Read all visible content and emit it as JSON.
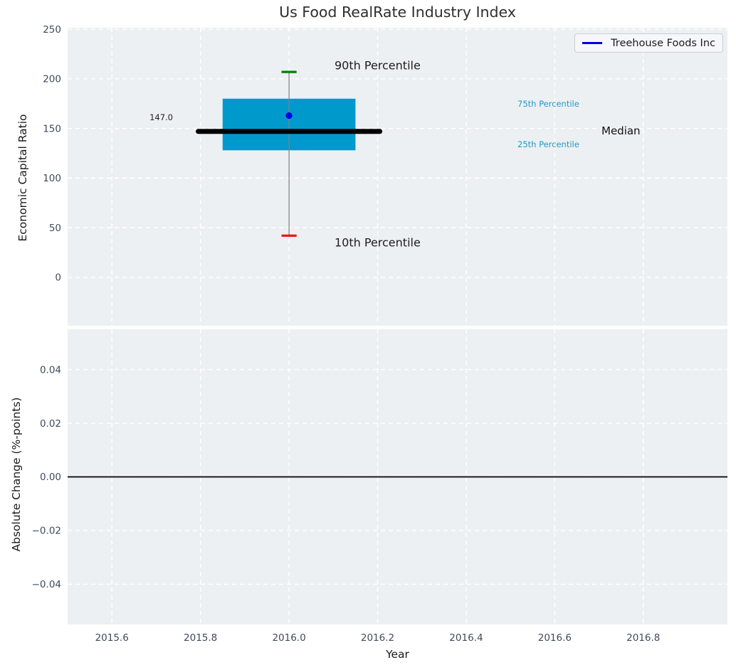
{
  "figure": {
    "title": "Us Food RealRate Industry Index",
    "xlabel": "Year",
    "legend": {
      "label": "Treehouse Foods Inc",
      "position": "upper right"
    }
  },
  "annotations": {
    "p90": "90th Percentile",
    "p10": "10th Percentile",
    "p75": "75th Percentile",
    "p25": "25th Percentile",
    "median": "Median"
  },
  "colors": {
    "axes_background": "#ecf0f2",
    "grid": "#ffffff",
    "tick_label": "#3e4a5c",
    "box_fill": "#0099cc",
    "whisker": "#808080",
    "cap_90th": "#008000",
    "cap_10th": "#ff0000",
    "median_line": "#000000",
    "company_marker": "#0000e0",
    "percentile_label": "#1e9ac8",
    "zero_line": "#000000"
  },
  "chart_data": [
    {
      "type": "box",
      "title": "Us Food RealRate Industry Index",
      "xlabel": "Year",
      "ylabel": "Economic Capital Ratio",
      "x_center": 2016.0,
      "box": {
        "x_left": 2015.85,
        "x_right": 2016.15,
        "p25": 128,
        "p75": 180
      },
      "median": {
        "value": 147.0,
        "label": "147.0",
        "x_left": 2015.795,
        "x_right": 2016.205
      },
      "whiskers": {
        "p10": 42,
        "p90": 207,
        "cap_halfwidth": 0.017
      },
      "company_marker": {
        "name": "Treehouse Foods Inc",
        "x": 2016.0,
        "y": 163
      },
      "xlim": [
        2015.5,
        2016.99
      ],
      "ylim": [
        -48.8,
        251.5
      ],
      "xticks": {
        "values": [
          2015.6,
          2015.8,
          2016.0,
          2016.2,
          2016.4,
          2016.6,
          2016.8
        ],
        "labels": [
          "2015.6",
          "2015.8",
          "2016.0",
          "2016.2",
          "2016.4",
          "2016.6",
          "2016.8"
        ]
      },
      "yticks": {
        "values": [
          0,
          50,
          100,
          150,
          200,
          250
        ],
        "labels": [
          "0",
          "50",
          "100",
          "150",
          "200",
          "250"
        ]
      },
      "grid": true,
      "legend_position": "upper right"
    },
    {
      "type": "line",
      "ylabel": "Absolute Change (%-points)",
      "series": [
        {
          "name": "zero-line",
          "x": [
            2015.5,
            2016.99
          ],
          "y": [
            0,
            0
          ]
        }
      ],
      "xlim": [
        2015.5,
        2016.99
      ],
      "ylim": [
        -0.055,
        0.055
      ],
      "xticks": {
        "values": [
          2015.6,
          2015.8,
          2016.0,
          2016.2,
          2016.4,
          2016.6,
          2016.8
        ],
        "labels": [
          "2015.6",
          "2015.8",
          "2016.0",
          "2016.2",
          "2016.4",
          "2016.6",
          "2016.8"
        ]
      },
      "yticks": {
        "values": [
          0.04,
          0.02,
          0.0,
          -0.02,
          -0.04
        ],
        "labels": [
          "0.04",
          "0.02",
          "0.00",
          "−0.02",
          "−0.04"
        ]
      },
      "grid": true
    }
  ]
}
